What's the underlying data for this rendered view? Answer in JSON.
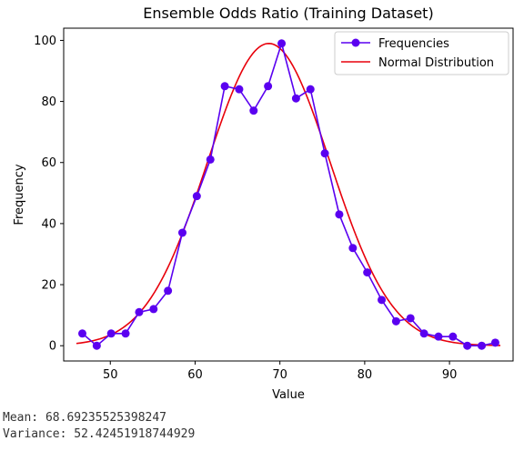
{
  "chart_data": {
    "type": "line",
    "title": "Ensemble Odds Ratio (Training Dataset)",
    "xlabel": "Value",
    "ylabel": "Frequency",
    "xlim": [
      44.5,
      97.5
    ],
    "ylim": [
      -5,
      104
    ],
    "xticks": [
      50,
      60,
      70,
      80,
      90
    ],
    "yticks": [
      0,
      20,
      40,
      60,
      80,
      100
    ],
    "grid": false,
    "legend_position": "top-right",
    "series": [
      {
        "name": "Frequencies",
        "kind": "line-marker",
        "color": "#5a00f0",
        "x": [
          46.7,
          48.4,
          50.1,
          51.8,
          53.4,
          55.1,
          56.8,
          58.5,
          60.2,
          61.8,
          63.5,
          65.2,
          66.9,
          68.6,
          70.2,
          71.9,
          73.6,
          75.3,
          77.0,
          78.6,
          80.3,
          82.0,
          83.7,
          85.4,
          87.0,
          88.7,
          90.4,
          92.1,
          93.8,
          95.4
        ],
        "y": [
          4,
          0,
          4,
          4,
          11,
          12,
          18,
          37,
          49,
          61,
          85,
          84,
          77,
          85,
          99,
          81,
          84,
          63,
          43,
          32,
          24,
          15,
          8,
          9,
          4,
          3,
          3,
          0,
          0,
          1
        ]
      },
      {
        "name": "Normal Distribution",
        "kind": "curve",
        "color": "#e8000b",
        "mean": 68.69,
        "peak": 99,
        "sigma": 7.24,
        "x_range": [
          46.0,
          96.0
        ]
      }
    ]
  },
  "stats": {
    "mean_text": "Mean: 68.69235525398247",
    "variance_text": "Variance: 52.42451918744929"
  }
}
